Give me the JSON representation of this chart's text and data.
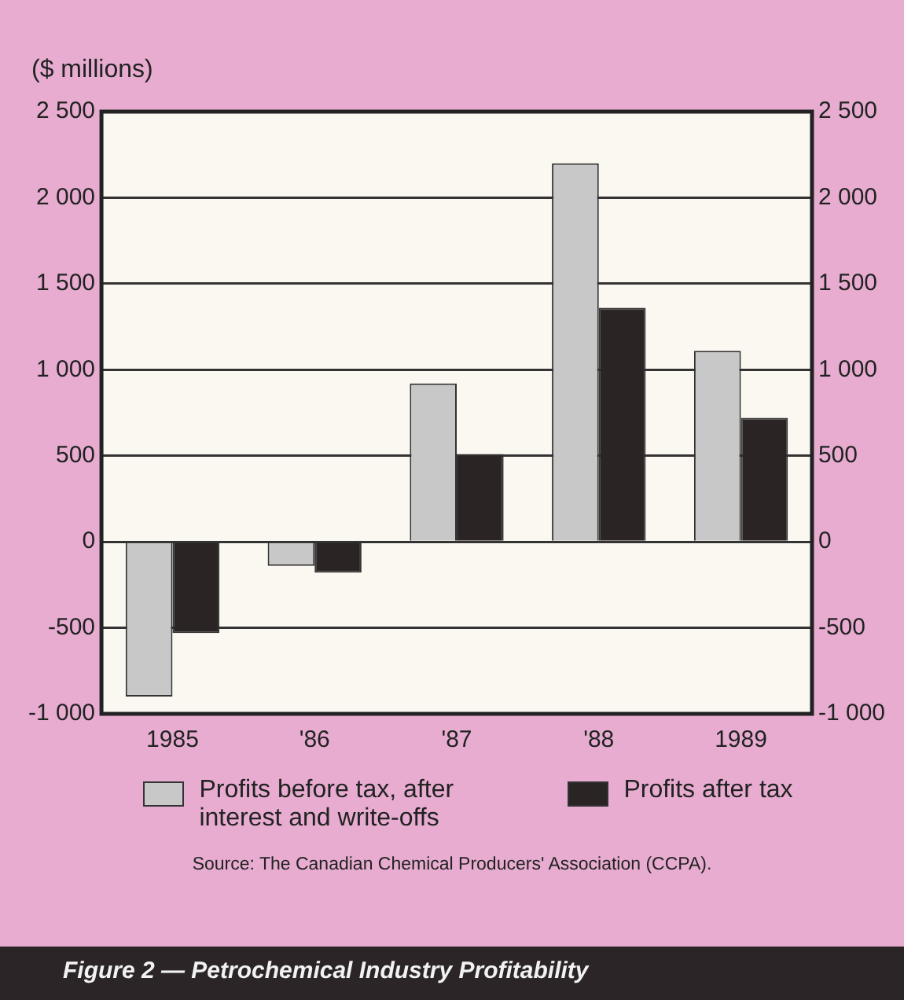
{
  "chart_data": {
    "type": "bar",
    "title": "Figure 2 — Petrochemical Industry Profitability",
    "ylabel": "($ millions)",
    "annotations": [
      "Source: The Canadian Chemical Producers' Association (CCPA)."
    ],
    "categories": [
      "1985",
      "'86",
      "'87",
      "'88",
      "1989"
    ],
    "series": [
      {
        "name": "Profits before tax, after interest and write-offs",
        "color": "#c8c8c8",
        "values": [
          -900,
          -140,
          920,
          2200,
          1110
        ]
      },
      {
        "name": "Profits after tax",
        "color": "#2a2424",
        "values": [
          -530,
          -180,
          510,
          1360,
          720
        ]
      }
    ],
    "ylim": [
      -1000,
      2500
    ],
    "yticks": [
      {
        "value": -1000,
        "label": "-1 000"
      },
      -500,
      0,
      500,
      {
        "value": 1000,
        "label": "1 000"
      },
      {
        "value": 1500,
        "label": "1 500"
      },
      {
        "value": 2000,
        "label": "2 000"
      },
      {
        "value": 2500,
        "label": "2 500"
      }
    ],
    "y2lim": [
      -1000,
      2500
    ],
    "y2ticks": [
      {
        "value": -1000,
        "label": "-1 000"
      },
      -500,
      0,
      500,
      {
        "value": 1000,
        "label": "1 000"
      },
      {
        "value": 1500,
        "label": "1 500"
      },
      {
        "value": 2000,
        "label": "2 000"
      },
      {
        "value": 2500,
        "label": "2 500"
      }
    ],
    "grid": "y",
    "legend": "bottom"
  }
}
